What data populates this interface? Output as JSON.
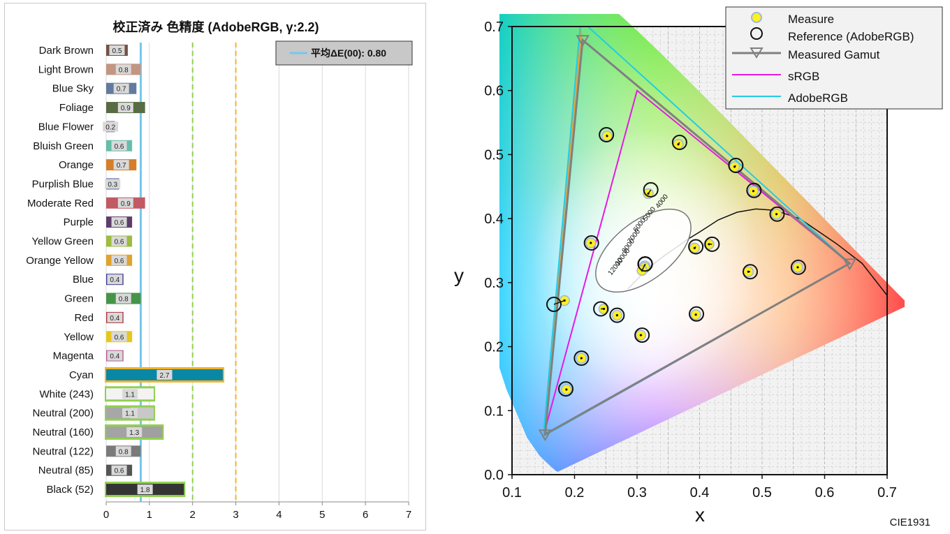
{
  "chart_data": [
    {
      "type": "bar",
      "orientation": "horizontal",
      "title": "校正済み 色精度 (AdobeRGB, γ:2.2)",
      "legend": {
        "label": "平均ΔE(00): 0.80",
        "position": "top-right"
      },
      "average": 0.8,
      "reference_lines": [
        {
          "value": 0.8,
          "color": "#74c8ec",
          "style": "solid"
        },
        {
          "value": 2,
          "color": "#92d050",
          "style": "dashed"
        },
        {
          "value": 3,
          "color": "#f5b326",
          "style": "dashed"
        }
      ],
      "xlim": [
        0,
        7
      ],
      "xticks": [
        "0",
        "1",
        "2",
        "3",
        "4",
        "5",
        "6",
        "7"
      ],
      "grid": true,
      "bars": [
        {
          "label": "Dark Brown",
          "value": 0.5,
          "value_label": "0.5",
          "colors": [
            "#735244",
            "#735244"
          ],
          "highlight": ""
        },
        {
          "label": "Light Brown",
          "value": 0.8,
          "value_label": "0.8",
          "colors": [
            "#c29682",
            "#c29682"
          ],
          "highlight": ""
        },
        {
          "label": "Blue Sky",
          "value": 0.7,
          "value_label": "0.7",
          "colors": [
            "#627a9d",
            "#627a9d"
          ],
          "highlight": ""
        },
        {
          "label": "Foliage",
          "value": 0.9,
          "value_label": "0.9",
          "colors": [
            "#576c43",
            "#576c43"
          ],
          "highlight": ""
        },
        {
          "label": "Blue Flower",
          "value": 0.2,
          "value_label": "0.2",
          "colors": [
            "#8580b1",
            "#8580b1"
          ],
          "highlight": ""
        },
        {
          "label": "Bluish Green",
          "value": 0.6,
          "value_label": "0.6",
          "colors": [
            "#67bdaa",
            "#67bdaa"
          ],
          "highlight": ""
        },
        {
          "label": "Orange",
          "value": 0.7,
          "value_label": "0.7",
          "colors": [
            "#d67e2c",
            "#d67e2c"
          ],
          "highlight": ""
        },
        {
          "label": "Purplish Blue",
          "value": 0.3,
          "value_label": "0.3",
          "colors": [
            "#505ba6",
            "#505ba6"
          ],
          "highlight": ""
        },
        {
          "label": "Moderate Red",
          "value": 0.9,
          "value_label": "0.9",
          "colors": [
            "#c15a63",
            "#c15a63"
          ],
          "highlight": ""
        },
        {
          "label": "Purple",
          "value": 0.6,
          "value_label": "0.6",
          "colors": [
            "#5e3c6c",
            "#5e3c6c"
          ],
          "highlight": ""
        },
        {
          "label": "Yellow Green",
          "value": 0.6,
          "value_label": "0.6",
          "colors": [
            "#9dbc40",
            "#9dbc40"
          ],
          "highlight": ""
        },
        {
          "label": "Orange Yellow",
          "value": 0.6,
          "value_label": "0.6",
          "colors": [
            "#e0a32e",
            "#e0a32e"
          ],
          "highlight": ""
        },
        {
          "label": "Blue",
          "value": 0.4,
          "value_label": "0.4",
          "colors": [
            "#383d96",
            "#383d96"
          ],
          "highlight": ""
        },
        {
          "label": "Green",
          "value": 0.8,
          "value_label": "0.8",
          "colors": [
            "#469449",
            "#469449"
          ],
          "highlight": ""
        },
        {
          "label": "Red",
          "value": 0.4,
          "value_label": "0.4",
          "colors": [
            "#af363c",
            "#af363c"
          ],
          "highlight": ""
        },
        {
          "label": "Yellow",
          "value": 0.6,
          "value_label": "0.6",
          "colors": [
            "#e7c71f",
            "#e7c71f"
          ],
          "highlight": ""
        },
        {
          "label": "Magenta",
          "value": 0.4,
          "value_label": "0.4",
          "colors": [
            "#bb5695",
            "#bb5695"
          ],
          "highlight": ""
        },
        {
          "label": "Cyan",
          "value": 2.7,
          "value_label": "2.7",
          "colors": [
            "#0b87a6",
            "#0b87a6"
          ],
          "highlight": "#f5b326"
        },
        {
          "label": "White (243)",
          "value": 1.1,
          "value_label": "1.1",
          "colors": [
            "#f3f3f3",
            "#f3f3f3"
          ],
          "highlight": "#92d050"
        },
        {
          "label": "Neutral (200)",
          "value": 1.1,
          "value_label": "1.1",
          "colors": [
            "#a7a7a7",
            "#c8c8c8"
          ],
          "highlight": "#92d050"
        },
        {
          "label": "Neutral (160)",
          "value": 1.3,
          "value_label": "1.3",
          "colors": [
            "#a3a3a3",
            "#a0a0a0"
          ],
          "highlight": "#92d050"
        },
        {
          "label": "Neutral (122)",
          "value": 0.8,
          "value_label": "0.8",
          "colors": [
            "#7a7a7a",
            "#7a7a7a"
          ],
          "highlight": ""
        },
        {
          "label": "Neutral (85)",
          "value": 0.6,
          "value_label": "0.6",
          "colors": [
            "#555555",
            "#555555"
          ],
          "highlight": ""
        },
        {
          "label": "Black (52)",
          "value": 1.8,
          "value_label": "1.8",
          "colors": [
            "#343434",
            "#343434"
          ],
          "highlight": "#92d050"
        }
      ]
    },
    {
      "type": "scatter",
      "subtype": "cie1931-chromaticity",
      "xlabel": "x",
      "ylabel": "y",
      "xlim": [
        0.1,
        0.7
      ],
      "ylim": [
        0.0,
        0.7
      ],
      "xticks": [
        "0.1",
        "0.2",
        "0.3",
        "0.4",
        "0.5",
        "0.6",
        "0.7"
      ],
      "yticks": [
        "0.0",
        "0.1",
        "0.2",
        "0.3",
        "0.4",
        "0.5",
        "0.6",
        "0.7"
      ],
      "caption": "CIE1931",
      "grid": true,
      "legend": {
        "position": "top-right",
        "entries": [
          "Measure",
          "Reference (AdobeRGB)",
          "Measured Gamut",
          "sRGB",
          "AdobeRGB"
        ]
      },
      "gamuts": {
        "measured": {
          "color": "#808080",
          "points": [
            [
              0.64,
              0.33
            ],
            [
              0.213,
              0.679
            ],
            [
              0.153,
              0.063
            ]
          ]
        },
        "srgb": {
          "color": "#e619e6",
          "points": [
            [
              0.64,
              0.33
            ],
            [
              0.3,
              0.6
            ],
            [
              0.15,
              0.06
            ]
          ]
        },
        "adobergb": {
          "color": "#22cce6",
          "points": [
            [
              0.64,
              0.33
            ],
            [
              0.21,
              0.71
            ],
            [
              0.15,
              0.06
            ]
          ]
        }
      },
      "planckian_locus": {
        "labels": [
          "4000",
          "5000",
          "6000",
          "7000",
          "8000",
          "10000",
          "12000"
        ]
      },
      "patches": [
        {
          "name": "Dark Brown",
          "measure": [
            0.415,
            0.36
          ],
          "reference": [
            0.42,
            0.36
          ]
        },
        {
          "name": "Light Brown",
          "measure": [
            0.392,
            0.354
          ],
          "reference": [
            0.394,
            0.356
          ]
        },
        {
          "name": "Blue Sky",
          "measure": [
            0.247,
            0.259
          ],
          "reference": [
            0.242,
            0.259
          ]
        },
        {
          "name": "Foliage",
          "measure": [
            0.366,
            0.516
          ],
          "reference": [
            0.368,
            0.519
          ]
        },
        {
          "name": "Blue Flower",
          "measure": [
            0.268,
            0.249
          ],
          "reference": [
            0.268,
            0.249
          ]
        },
        {
          "name": "Bluish Green",
          "measure": [
            0.252,
            0.529
          ],
          "reference": [
            0.251,
            0.531
          ]
        },
        {
          "name": "Orange",
          "measure": [
            0.523,
            0.407
          ],
          "reference": [
            0.524,
            0.407
          ]
        },
        {
          "name": "Purplish Blue",
          "measure": [
            0.211,
            0.182
          ],
          "reference": [
            0.211,
            0.182
          ]
        },
        {
          "name": "Moderate Red",
          "measure": [
            0.478,
            0.317
          ],
          "reference": [
            0.481,
            0.317
          ]
        },
        {
          "name": "Purple",
          "measure": [
            0.306,
            0.218
          ],
          "reference": [
            0.308,
            0.218
          ]
        },
        {
          "name": "Yellow Green",
          "measure": [
            0.318,
            0.439
          ],
          "reference": [
            0.322,
            0.445
          ]
        },
        {
          "name": "Orange Yellow",
          "measure": [
            0.486,
            0.443
          ],
          "reference": [
            0.487,
            0.444
          ]
        },
        {
          "name": "Blue",
          "measure": [
            0.187,
            0.133
          ],
          "reference": [
            0.186,
            0.134
          ]
        },
        {
          "name": "Green",
          "measure": [
            0.226,
            0.362
          ],
          "reference": [
            0.227,
            0.362
          ]
        },
        {
          "name": "Red",
          "measure": [
            0.557,
            0.324
          ],
          "reference": [
            0.558,
            0.324
          ]
        },
        {
          "name": "Yellow",
          "measure": [
            0.456,
            0.481
          ],
          "reference": [
            0.458,
            0.483
          ]
        },
        {
          "name": "Magenta",
          "measure": [
            0.394,
            0.25
          ],
          "reference": [
            0.395,
            0.251
          ]
        },
        {
          "name": "Cyan",
          "measure": [
            0.184,
            0.272
          ],
          "reference": [
            0.167,
            0.266
          ]
        },
        {
          "name": "White (243)",
          "measure": [
            0.312,
            0.326
          ],
          "reference": [
            0.313,
            0.329
          ]
        },
        {
          "name": "Neutral (200)",
          "measure": [
            0.313,
            0.326
          ],
          "reference": [
            0.313,
            0.329
          ]
        },
        {
          "name": "Neutral (160)",
          "measure": [
            0.312,
            0.323
          ],
          "reference": [
            0.313,
            0.329
          ]
        },
        {
          "name": "Neutral (122)",
          "measure": [
            0.311,
            0.322
          ],
          "reference": [
            0.313,
            0.329
          ]
        },
        {
          "name": "Neutral (85)",
          "measure": [
            0.312,
            0.324
          ],
          "reference": [
            0.313,
            0.329
          ]
        },
        {
          "name": "Black (52)",
          "measure": [
            0.308,
            0.319
          ],
          "reference": [
            0.313,
            0.329
          ]
        }
      ]
    }
  ]
}
